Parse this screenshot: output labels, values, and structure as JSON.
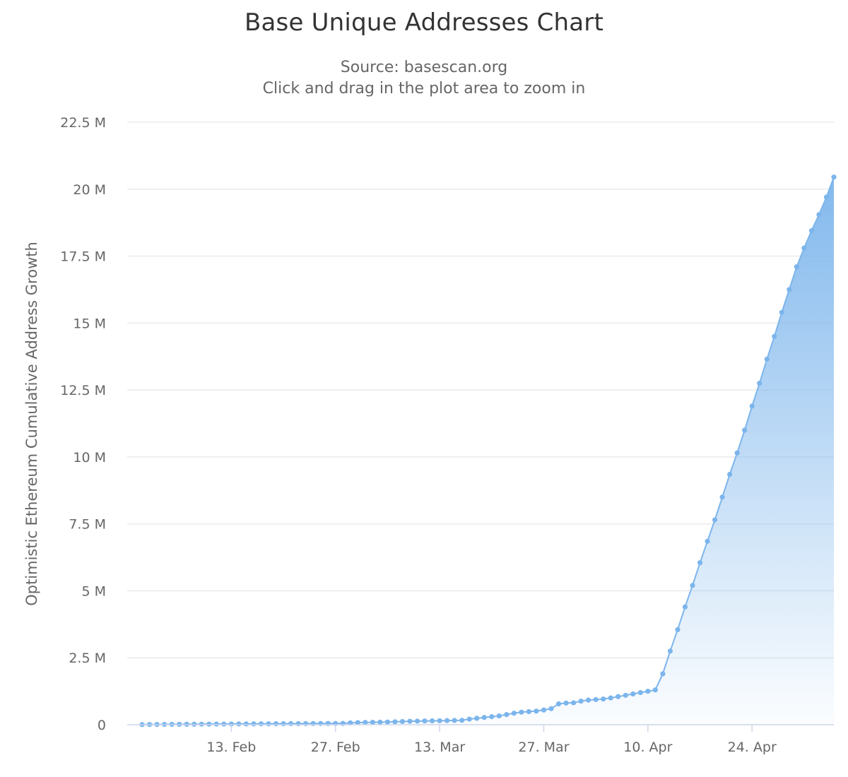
{
  "chart_data": {
    "type": "area",
    "title": "Base Unique Addresses Chart",
    "subtitle": "Source: basescan.org",
    "subtitle2": "Click and drag in the plot area to zoom in",
    "ylabel": "Optimistic Ethereum Cumulative Address Growth",
    "xlabel": "",
    "yticks": [
      "0",
      "2.5 M",
      "5 M",
      "7.5 M",
      "10 M",
      "12.5 M",
      "15 M",
      "17.5 M",
      "20 M",
      "22.5 M"
    ],
    "ytick_values": [
      0,
      2500000,
      5000000,
      7500000,
      10000000,
      12500000,
      15000000,
      17500000,
      20000000,
      22500000
    ],
    "xticks": [
      "13. Feb",
      "27. Feb",
      "13. Mar",
      "27. Mar",
      "10. Apr",
      "24. Apr"
    ],
    "xtick_dates": [
      "2023-02-13",
      "2023-02-27",
      "2023-03-13",
      "2023-03-27",
      "2023-04-10",
      "2023-04-24"
    ],
    "x_range": [
      "2023-01-30",
      "2023-05-05"
    ],
    "ylim": [
      0,
      22500000
    ],
    "grid": true,
    "legend": false,
    "series": [
      {
        "color": "#7cb5ec",
        "x": [
          "2023-02-01",
          "2023-02-02",
          "2023-02-03",
          "2023-02-04",
          "2023-02-05",
          "2023-02-06",
          "2023-02-07",
          "2023-02-08",
          "2023-02-09",
          "2023-02-10",
          "2023-02-11",
          "2023-02-12",
          "2023-02-13",
          "2023-02-14",
          "2023-02-15",
          "2023-02-16",
          "2023-02-17",
          "2023-02-18",
          "2023-02-19",
          "2023-02-20",
          "2023-02-21",
          "2023-02-22",
          "2023-02-23",
          "2023-02-24",
          "2023-02-25",
          "2023-02-26",
          "2023-02-27",
          "2023-02-28",
          "2023-03-01",
          "2023-03-02",
          "2023-03-03",
          "2023-03-04",
          "2023-03-05",
          "2023-03-06",
          "2023-03-07",
          "2023-03-08",
          "2023-03-09",
          "2023-03-10",
          "2023-03-11",
          "2023-03-12",
          "2023-03-13",
          "2023-03-14",
          "2023-03-15",
          "2023-03-16",
          "2023-03-17",
          "2023-03-18",
          "2023-03-19",
          "2023-03-20",
          "2023-03-21",
          "2023-03-22",
          "2023-03-23",
          "2023-03-24",
          "2023-03-25",
          "2023-03-26",
          "2023-03-27",
          "2023-03-28",
          "2023-03-29",
          "2023-03-30",
          "2023-03-31",
          "2023-04-01",
          "2023-04-02",
          "2023-04-03",
          "2023-04-04",
          "2023-04-05",
          "2023-04-06",
          "2023-04-07",
          "2023-04-08",
          "2023-04-09",
          "2023-04-10",
          "2023-04-11",
          "2023-04-12",
          "2023-04-13",
          "2023-04-14",
          "2023-04-15",
          "2023-04-16",
          "2023-04-17",
          "2023-04-18",
          "2023-04-19",
          "2023-04-20",
          "2023-04-21",
          "2023-04-22",
          "2023-04-23",
          "2023-04-24",
          "2023-04-25",
          "2023-04-26",
          "2023-04-27",
          "2023-04-28",
          "2023-04-29",
          "2023-04-30",
          "2023-05-01",
          "2023-05-02",
          "2023-05-03",
          "2023-05-04",
          "2023-05-05"
        ],
        "values": [
          5000,
          8000,
          10000,
          12000,
          14000,
          15000,
          17000,
          19000,
          20000,
          22000,
          24000,
          25000,
          27000,
          29000,
          30000,
          32000,
          34000,
          35000,
          37000,
          38000,
          40000,
          41000,
          43000,
          44000,
          46000,
          47000,
          48000,
          50000,
          70000,
          80000,
          85000,
          90000,
          95000,
          100000,
          110000,
          120000,
          130000,
          135000,
          140000,
          145000,
          150000,
          155000,
          160000,
          165000,
          210000,
          240000,
          270000,
          300000,
          330000,
          380000,
          430000,
          470000,
          490000,
          510000,
          550000,
          600000,
          780000,
          810000,
          820000,
          880000,
          920000,
          940000,
          960000,
          1000000,
          1050000,
          1100000,
          1150000,
          1200000,
          1250000,
          1300000,
          1900000,
          2750000,
          3550000,
          4400000,
          5200000,
          6050000,
          6850000,
          7650000,
          8500000,
          9350000,
          10150000,
          11000000,
          11900000,
          12750000,
          13650000,
          14500000,
          15400000,
          16250000,
          17100000,
          17800000,
          18450000,
          19050000,
          19700000,
          20450000
        ]
      }
    ]
  }
}
